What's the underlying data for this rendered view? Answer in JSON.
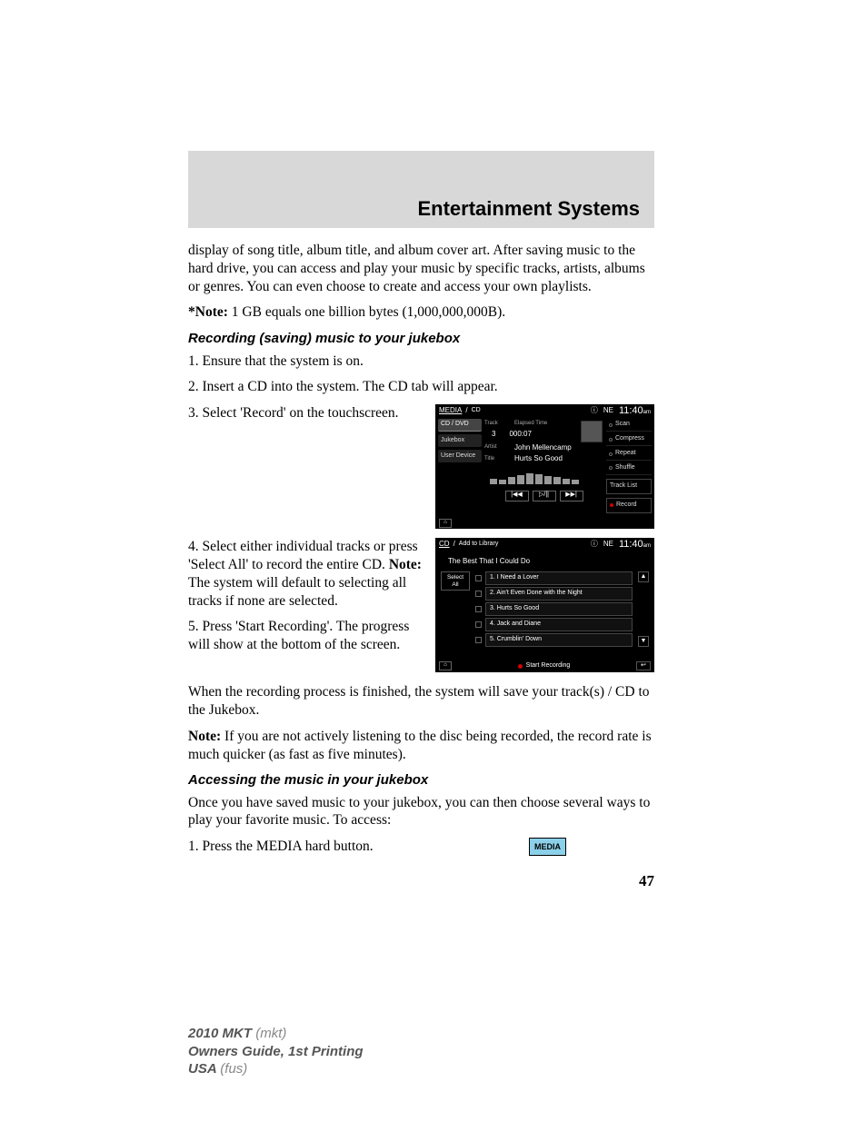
{
  "header": {
    "title": "Entertainment Systems"
  },
  "intro": {
    "para1": "display of song title, album title, and album cover art. After saving music to the hard drive, you can access and play your music by specific tracks, artists, albums or genres. You can even choose to create and access your own playlists.",
    "note_label": "*Note:",
    "note_text": " 1 GB equals one billion bytes (1,000,000,000B)."
  },
  "recording": {
    "heading": "Recording (saving) music to your jukebox",
    "step1": "1. Ensure that the system is on.",
    "step2": "2. Insert a CD into the system. The CD tab will appear.",
    "step3": "3. Select 'Record' on the touchscreen.",
    "step4a": "4. Select either individual tracks or press 'Select All' to record the entire CD. ",
    "step4_note_label": "Note:",
    "step4b": " The system will default to selecting all tracks if none are selected.",
    "step5": "5. Press 'Start Recording'. The progress will show at the bottom of the screen.",
    "finish": "When the recording process is finished, the system will save your track(s) / CD to the Jukebox.",
    "note2_label": "Note:",
    "note2_text": " If you are not actively listening to the disc being recorded, the record rate is much quicker (as fast as five minutes)."
  },
  "accessing": {
    "heading": "Accessing the music in your jukebox",
    "para": "Once you have saved music to your jukebox, you can then choose several ways to play your favorite music. To access:",
    "step1": "1. Press the MEDIA hard button."
  },
  "media_button": {
    "label": "MEDIA"
  },
  "page_number": "47",
  "footer": {
    "line1a": "2010 MKT ",
    "line1b": "(mkt)",
    "line2": "Owners Guide, 1st Printing",
    "line3a": "USA ",
    "line3b": "(fus)"
  },
  "screenshot1": {
    "breadcrumb_a": "MEDIA",
    "breadcrumb_b": "CD",
    "status_icon": "ⓘ",
    "compass": "NE",
    "time": "11:40",
    "time_suffix": "am",
    "tabs": {
      "cddvd": "CD / DVD",
      "jukebox": "Jukebox",
      "userdevice": "User Device"
    },
    "info": {
      "track_label": "Track",
      "track_value": "3",
      "elapsed_label": "Elapsed Time",
      "elapsed_value": "000:07",
      "artist_label": "Artist",
      "artist_value": "John Mellencamp",
      "title_label": "Title",
      "title_value": "Hurts So Good"
    },
    "eq_bars": [
      6,
      5,
      8,
      10,
      12,
      11,
      9,
      8,
      6,
      5
    ],
    "transport": {
      "prev": "|◀◀",
      "play": "▷/||",
      "next": "▶▶|"
    },
    "options": {
      "scan": "Scan",
      "compress": "Compress",
      "repeat": "Repeat",
      "shuffle": "Shuffle",
      "tracklist": "Track List",
      "record": "Record"
    },
    "home": "⌂"
  },
  "screenshot2": {
    "breadcrumb_a": "CD",
    "breadcrumb_b": "Add to Library",
    "status_icon": "ⓘ",
    "compass": "NE",
    "time": "11:40",
    "time_suffix": "am",
    "album_title": "The Best That I Could Do",
    "select_all": "Select All",
    "tracks": [
      "1. I Need a Lover",
      "2. Ain't Even Done with the Night",
      "3. Hurts So Good",
      "4. Jack and Diane",
      "5. Crumblin' Down"
    ],
    "scroll_up": "▲",
    "scroll_down": "▼",
    "start_recording": "Start Recording",
    "home": "⌂",
    "back": "↩"
  }
}
